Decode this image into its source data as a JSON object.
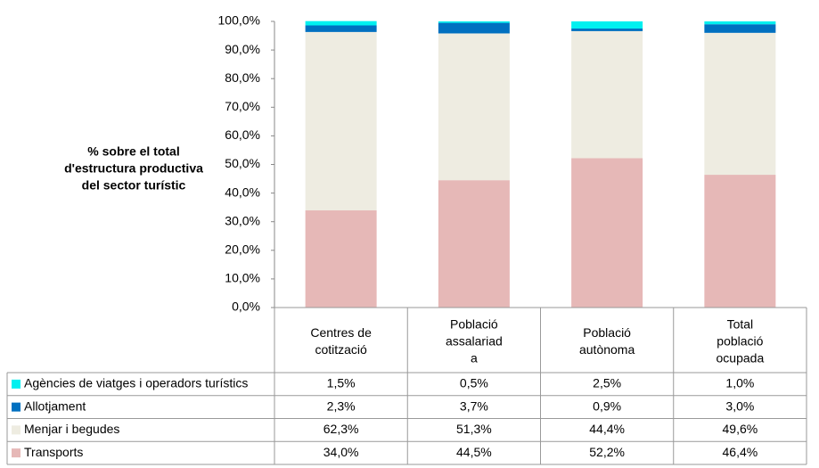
{
  "chart_data": {
    "type": "stacked_bar",
    "y_label": [
      "% sobre el total",
      "d'estructura productiva",
      "del  sector turístic"
    ],
    "categories": [
      [
        "Centres de",
        "cotització"
      ],
      [
        "Població",
        "assalariad",
        "a"
      ],
      [
        "Població",
        "autònoma"
      ],
      [
        "Total",
        "població",
        "ocupada"
      ]
    ],
    "series": [
      {
        "name": "Transports",
        "color": "#e6b8b7",
        "values": [
          34.0,
          44.5,
          52.2,
          46.4
        ],
        "value_labels": [
          "34,0%",
          "44,5%",
          "52,2%",
          "46,4%"
        ]
      },
      {
        "name": "Menjar i begudes",
        "color": "#eeece1",
        "values": [
          62.3,
          51.3,
          44.4,
          49.6
        ],
        "value_labels": [
          "62,3%",
          "51,3%",
          "44,4%",
          "49,6%"
        ]
      },
      {
        "name": "Allotjament",
        "color": "#0070c0",
        "values": [
          2.3,
          3.7,
          0.9,
          3.0
        ],
        "value_labels": [
          "2,3%",
          "3,7%",
          "0,9%",
          "3,0%"
        ]
      },
      {
        "name": "Agències de viatges i operadors turístics",
        "color": "#00f0f0",
        "values": [
          1.5,
          0.5,
          2.5,
          1.0
        ],
        "value_labels": [
          "1,5%",
          "0,5%",
          "2,5%",
          "1,0%"
        ]
      }
    ],
    "ylim": [
      0,
      100
    ],
    "yticks": [
      {
        "value": 0,
        "label": "0,0%"
      },
      {
        "value": 10,
        "label": "10,0%"
      },
      {
        "value": 20,
        "label": "20,0%"
      },
      {
        "value": 30,
        "label": "30,0%"
      },
      {
        "value": 40,
        "label": "40,0%"
      },
      {
        "value": 50,
        "label": "50,0%"
      },
      {
        "value": 60,
        "label": "60,0%"
      },
      {
        "value": 70,
        "label": "70,0%"
      },
      {
        "value": 80,
        "label": "80,0%"
      },
      {
        "value": 90,
        "label": "90,0%"
      },
      {
        "value": 100,
        "label": "100,0%"
      }
    ]
  }
}
